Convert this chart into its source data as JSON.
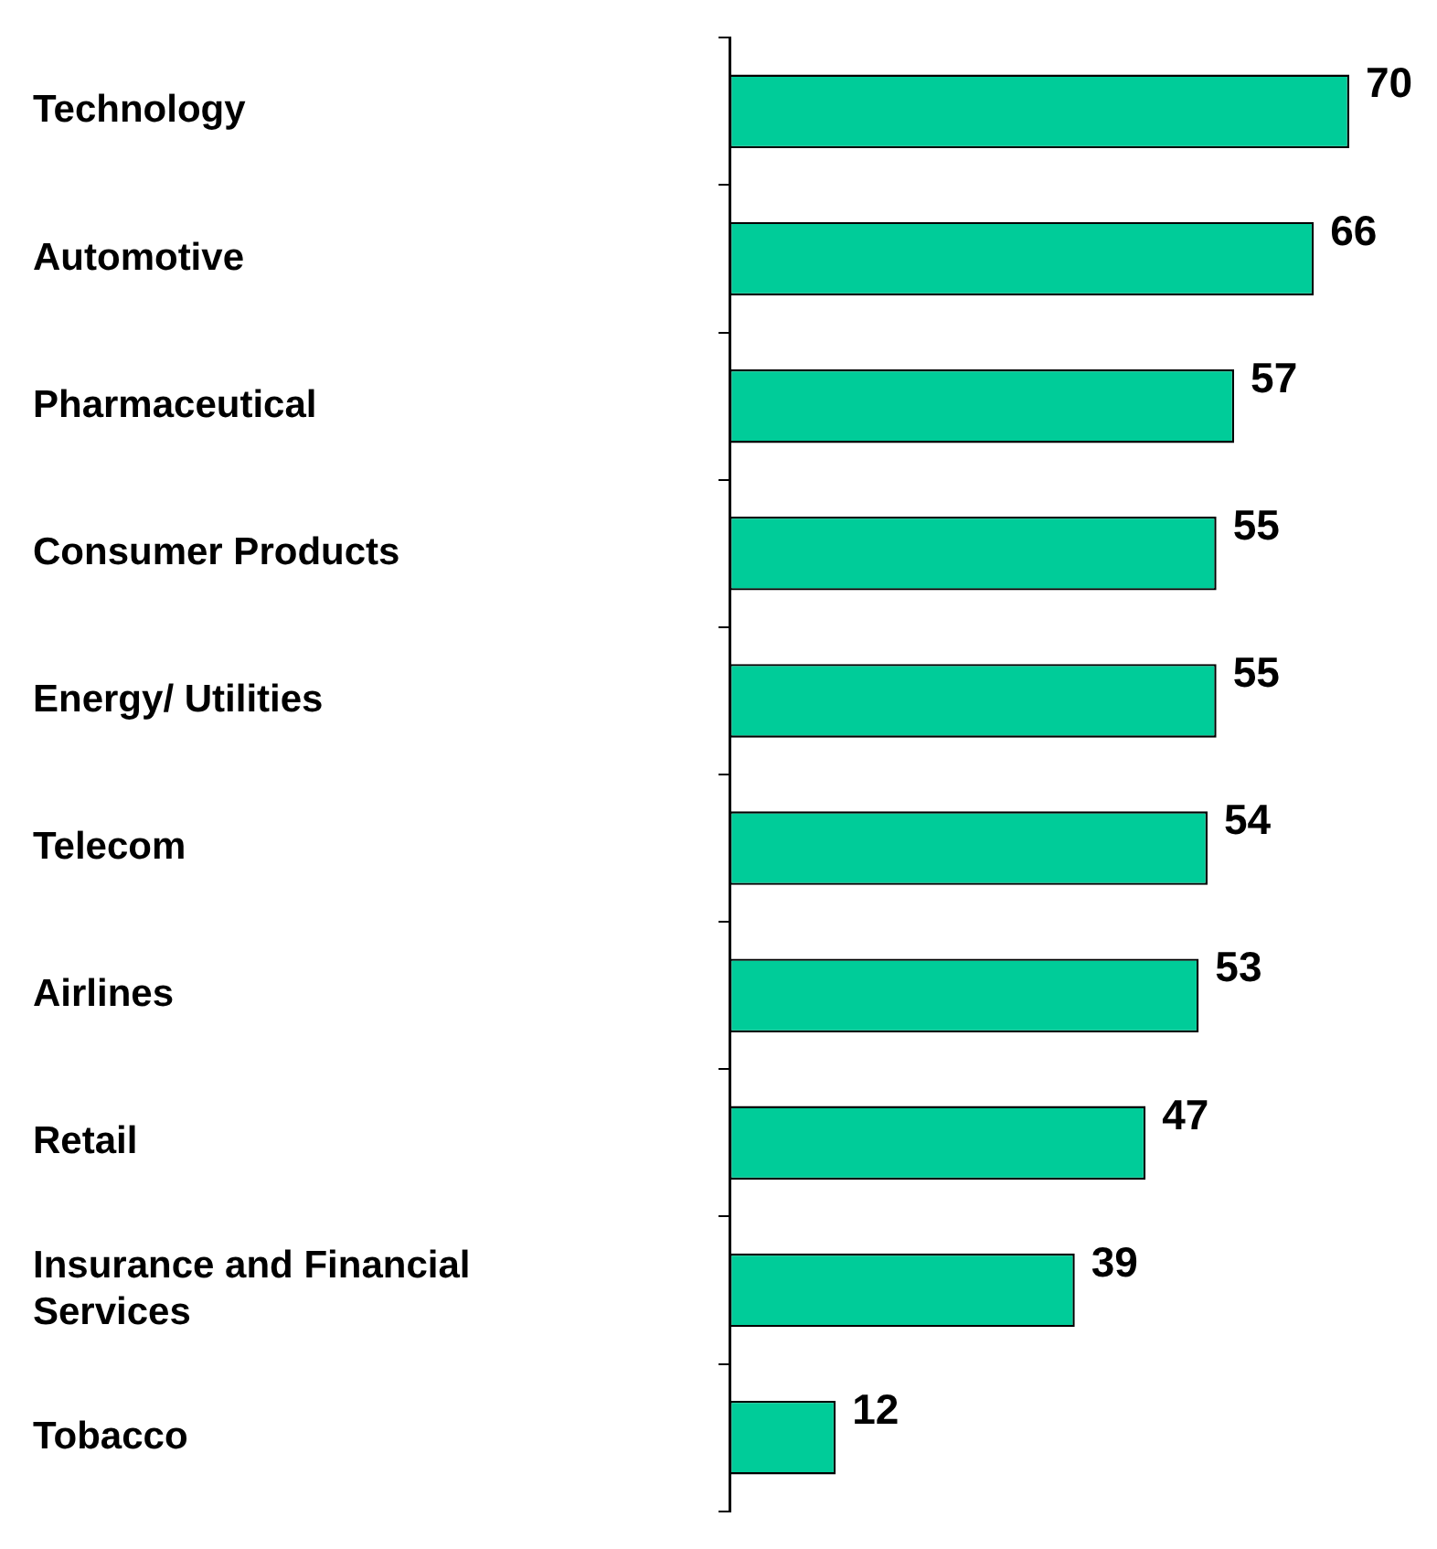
{
  "chart_data": {
    "type": "bar",
    "orientation": "horizontal",
    "categories": [
      "Technology",
      "Automotive",
      "Pharmaceutical",
      "Consumer Products",
      "Energy/ Utilities",
      "Telecom",
      "Airlines",
      "Retail",
      "Insurance and Financial Services",
      "Tobacco"
    ],
    "values": [
      70,
      66,
      57,
      55,
      55,
      54,
      53,
      47,
      39,
      12
    ],
    "color": "#00cc99",
    "data_labels": true,
    "grid": false,
    "legend": false
  }
}
